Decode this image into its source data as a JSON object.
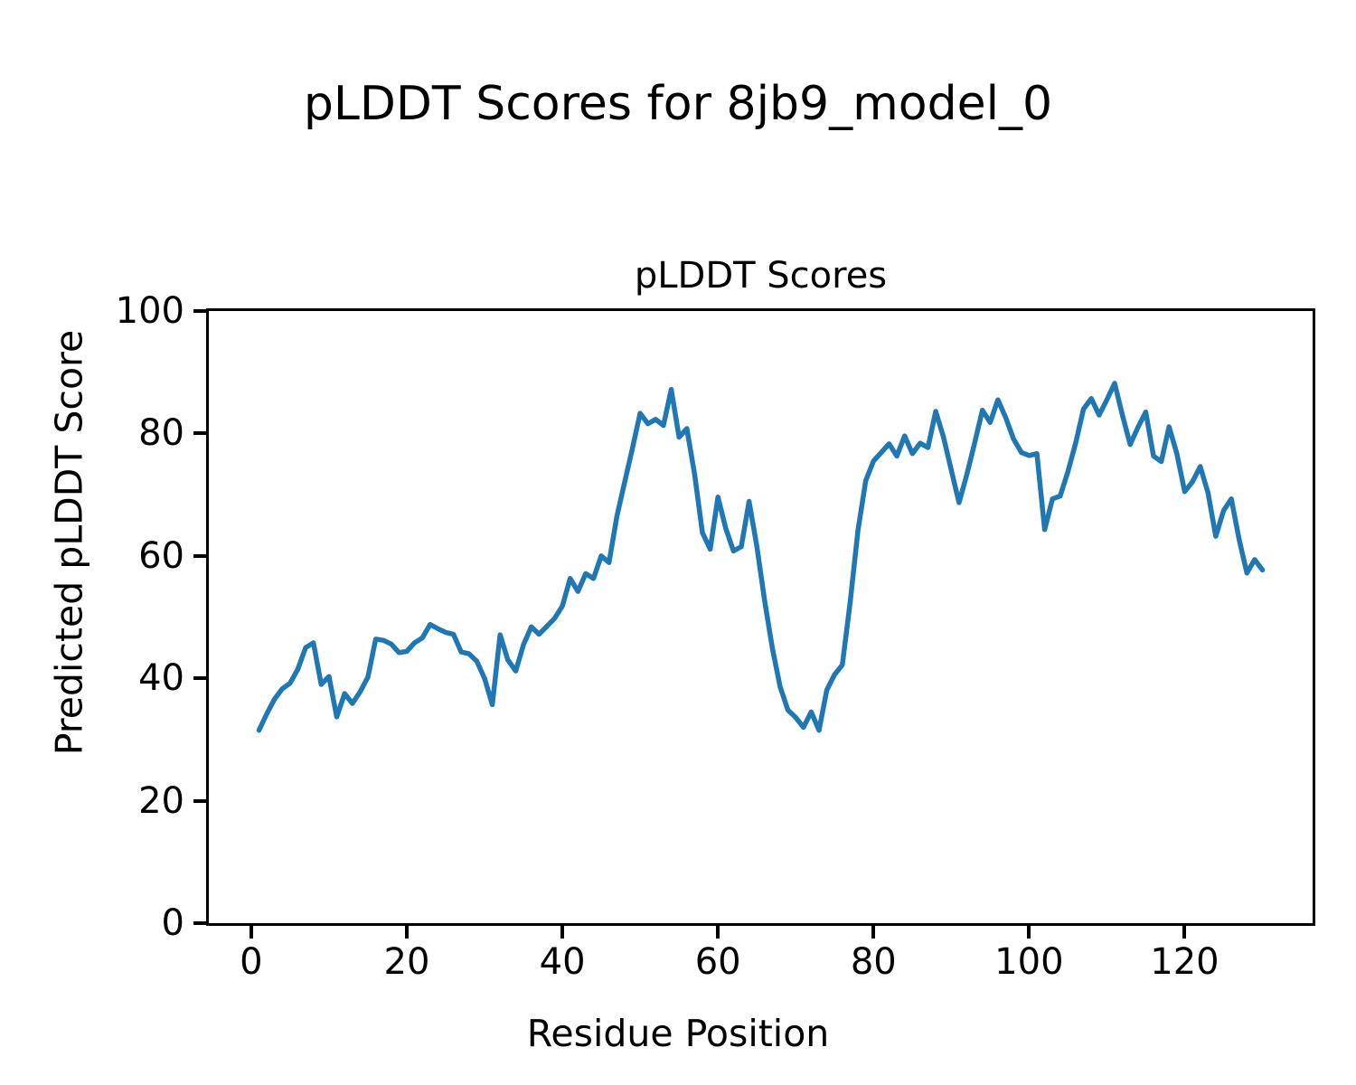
{
  "figure": {
    "suptitle": "pLDDT Scores for 8jb9_model_0"
  },
  "colors": {
    "line": "#1f77b4",
    "spine": "#000000",
    "background": "#ffffff",
    "text": "#000000"
  },
  "chart_data": {
    "type": "line",
    "title": "pLDDT Scores",
    "xlabel": "Residue Position",
    "ylabel": "Predicted pLDDT Score",
    "x_start": 1,
    "x_step": 1,
    "x_ticks": [
      0,
      20,
      40,
      60,
      80,
      100,
      120
    ],
    "y_ticks": [
      0,
      20,
      40,
      60,
      80,
      100
    ],
    "xlim": [
      -5.45,
      136.45
    ],
    "ylim": [
      0,
      100
    ],
    "grid": false,
    "legend": "none",
    "line_width": 5.5,
    "values": [
      31.5,
      34.2,
      36.6,
      38.3,
      39.2,
      41.5,
      45.0,
      45.8,
      39.0,
      40.3,
      33.7,
      37.5,
      35.9,
      37.8,
      40.2,
      46.4,
      46.2,
      45.6,
      44.2,
      44.4,
      45.8,
      46.6,
      48.8,
      48.1,
      47.5,
      47.2,
      44.3,
      44.0,
      42.8,
      40.0,
      35.7,
      47.1,
      43.0,
      41.2,
      45.5,
      48.4,
      47.2,
      48.5,
      49.8,
      51.8,
      56.3,
      54.2,
      57.1,
      56.3,
      60.0,
      58.9,
      66.4,
      72.0,
      77.5,
      83.3,
      81.6,
      82.3,
      81.3,
      87.2,
      79.4,
      80.8,
      73.3,
      63.8,
      61.1,
      69.6,
      64.5,
      60.8,
      61.5,
      68.9,
      61.6,
      52.7,
      44.9,
      38.6,
      34.8,
      33.6,
      32.0,
      34.5,
      31.5,
      38.1,
      40.6,
      42.2,
      52.5,
      64.2,
      72.3,
      75.5,
      76.9,
      78.3,
      76.3,
      79.6,
      76.7,
      78.4,
      77.7,
      83.6,
      79.4,
      74.0,
      68.7,
      73.3,
      78.4,
      83.8,
      81.8,
      85.5,
      82.6,
      79.1,
      76.9,
      76.4,
      76.7,
      64.3,
      69.3,
      69.8,
      73.8,
      78.5,
      84.0,
      85.7,
      83.0,
      85.5,
      88.2,
      83.0,
      78.2,
      81.0,
      83.5,
      76.3,
      75.4,
      81.1,
      76.7,
      70.5,
      72.1,
      74.6,
      70.3,
      63.2,
      67.4,
      69.3,
      62.7,
      57.2,
      59.4,
      57.7
    ]
  }
}
